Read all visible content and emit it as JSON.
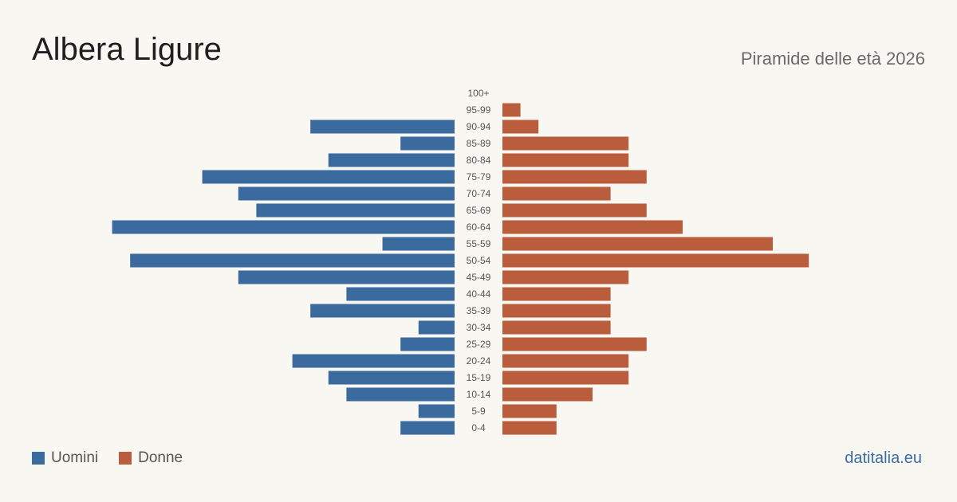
{
  "header": {
    "title": "Albera Ligure",
    "subtitle": "Piramide delle età 2026"
  },
  "legend": {
    "men_label": "Uomini",
    "women_label": "Donne"
  },
  "footer": {
    "brand": "datitalia.eu"
  },
  "colors": {
    "men": "#3a6a9e",
    "women": "#b95d3d",
    "background": "#f9f7f2",
    "tick_text": "#555555"
  },
  "chart_data": {
    "type": "bar",
    "orientation": "horizontal-pyramid",
    "categories": [
      "100+",
      "95-99",
      "90-94",
      "85-89",
      "80-84",
      "75-79",
      "70-74",
      "65-69",
      "60-64",
      "55-59",
      "50-54",
      "45-49",
      "40-44",
      "35-39",
      "30-34",
      "25-29",
      "20-24",
      "15-19",
      "10-14",
      "5-9",
      "0-4"
    ],
    "series": [
      {
        "name": "Uomini",
        "values": [
          0,
          0,
          8,
          3,
          7,
          14,
          12,
          11,
          19,
          4,
          18,
          12,
          6,
          8,
          2,
          3,
          9,
          7,
          6,
          2,
          3
        ]
      },
      {
        "name": "Donne",
        "values": [
          0,
          1,
          2,
          7,
          7,
          8,
          6,
          8,
          10,
          15,
          17,
          7,
          6,
          6,
          6,
          8,
          7,
          7,
          5,
          3,
          3
        ]
      }
    ],
    "grid": false,
    "legend_position": "bottom-left"
  }
}
